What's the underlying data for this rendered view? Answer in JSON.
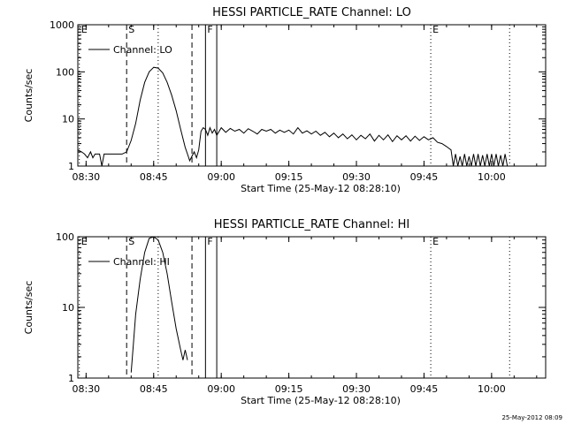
{
  "footer_timestamp": "25-May-2012 08:09",
  "chart_data": [
    {
      "type": "line",
      "title": "HESSI PARTICLE_RATE Channel: LO",
      "xlabel": "Start Time (25-May-12 08:28:10)",
      "ylabel": "Counts/sec",
      "yscale": "log",
      "xlim": [
        "08:28:10",
        "10:12:00"
      ],
      "ylim": [
        1,
        1000
      ],
      "x_ticks": [
        "08:30",
        "08:45",
        "09:00",
        "09:15",
        "09:30",
        "09:45",
        "10:00"
      ],
      "y_ticks": [
        "1",
        "10",
        "100",
        "1000"
      ],
      "legend": {
        "label": "Channel: LO",
        "placement": "top-left"
      },
      "markers": [
        {
          "label": "E",
          "time": "08:28:30",
          "style": "dotted"
        },
        {
          "label": "S",
          "time": "08:39:00",
          "style": "dashed"
        },
        {
          "label": "",
          "time": "08:46:00",
          "style": "dotted"
        },
        {
          "label": "",
          "time": "08:53:30",
          "style": "dashed"
        },
        {
          "label": "F",
          "time": "08:56:30",
          "style": "solid"
        },
        {
          "label": "",
          "time": "08:59:00",
          "style": "solid"
        },
        {
          "label": "E",
          "time": "09:46:30",
          "style": "dotted"
        },
        {
          "label": "",
          "time": "10:04:00",
          "style": "dotted"
        }
      ],
      "series": [
        {
          "name": "Channel: LO",
          "points": [
            [
              "08:28:10",
              2.2
            ],
            [
              "08:29:00",
              2.0
            ],
            [
              "08:29:40",
              1.8
            ],
            [
              "08:30:20",
              1.5
            ],
            [
              "08:31:00",
              2.0
            ],
            [
              "08:31:30",
              1.5
            ],
            [
              "08:32:00",
              1.8
            ],
            [
              "08:33:00",
              1.8
            ],
            [
              "08:33:30",
              1.0
            ],
            [
              "08:34:00",
              1.8
            ],
            [
              "08:36:00",
              1.8
            ],
            [
              "08:38:00",
              1.8
            ],
            [
              "08:39:00",
              2.0
            ],
            [
              "08:40:00",
              3.5
            ],
            [
              "08:41:00",
              8
            ],
            [
              "08:42:00",
              25
            ],
            [
              "08:43:00",
              60
            ],
            [
              "08:44:00",
              100
            ],
            [
              "08:45:00",
              125
            ],
            [
              "08:46:00",
              120
            ],
            [
              "08:47:00",
              95
            ],
            [
              "08:48:00",
              60
            ],
            [
              "08:49:00",
              32
            ],
            [
              "08:50:00",
              15
            ],
            [
              "08:51:00",
              6
            ],
            [
              "08:52:00",
              2.5
            ],
            [
              "08:52:30",
              1.8
            ],
            [
              "08:53:00",
              1.3
            ],
            [
              "08:54:00",
              2.0
            ],
            [
              "08:54:30",
              1.5
            ],
            [
              "08:55:00",
              2.2
            ],
            [
              "08:55:30",
              5.5
            ],
            [
              "08:56:00",
              6.5
            ],
            [
              "08:56:30",
              6.0
            ],
            [
              "08:57:00",
              4.5
            ],
            [
              "08:57:30",
              6.5
            ],
            [
              "08:58:00",
              5.0
            ],
            [
              "08:58:30",
              6.0
            ],
            [
              "08:59:00",
              4.5
            ],
            [
              "09:00:00",
              6.5
            ],
            [
              "09:01:00",
              5.2
            ],
            [
              "09:02:00",
              6.3
            ],
            [
              "09:03:00",
              5.5
            ],
            [
              "09:04:00",
              6.0
            ],
            [
              "09:05:00",
              5.0
            ],
            [
              "09:06:00",
              6.2
            ],
            [
              "09:07:00",
              5.5
            ],
            [
              "09:08:00",
              4.8
            ],
            [
              "09:09:00",
              6.0
            ],
            [
              "09:10:00",
              5.5
            ],
            [
              "09:11:00",
              6.0
            ],
            [
              "09:12:00",
              5.0
            ],
            [
              "09:13:00",
              5.8
            ],
            [
              "09:14:00",
              5.2
            ],
            [
              "09:15:00",
              5.8
            ],
            [
              "09:16:00",
              4.8
            ],
            [
              "09:17:00",
              6.5
            ],
            [
              "09:18:00",
              5.0
            ],
            [
              "09:19:00",
              5.6
            ],
            [
              "09:20:00",
              4.8
            ],
            [
              "09:21:00",
              5.5
            ],
            [
              "09:22:00",
              4.5
            ],
            [
              "09:23:00",
              5.2
            ],
            [
              "09:24:00",
              4.2
            ],
            [
              "09:25:00",
              5.0
            ],
            [
              "09:26:00",
              4.0
            ],
            [
              "09:27:00",
              4.8
            ],
            [
              "09:28:00",
              3.8
            ],
            [
              "09:29:00",
              4.6
            ],
            [
              "09:30:00",
              3.6
            ],
            [
              "09:31:00",
              4.5
            ],
            [
              "09:32:00",
              3.8
            ],
            [
              "09:33:00",
              4.8
            ],
            [
              "09:34:00",
              3.4
            ],
            [
              "09:35:00",
              4.5
            ],
            [
              "09:36:00",
              3.6
            ],
            [
              "09:37:00",
              4.6
            ],
            [
              "09:38:00",
              3.3
            ],
            [
              "09:39:00",
              4.4
            ],
            [
              "09:40:00",
              3.6
            ],
            [
              "09:41:00",
              4.4
            ],
            [
              "09:42:00",
              3.4
            ],
            [
              "09:43:00",
              4.3
            ],
            [
              "09:44:00",
              3.5
            ],
            [
              "09:45:00",
              4.2
            ],
            [
              "09:46:00",
              3.6
            ],
            [
              "09:47:00",
              4.0
            ],
            [
              "09:48:00",
              3.2
            ],
            [
              "09:49:00",
              3.0
            ],
            [
              "09:50:00",
              2.6
            ],
            [
              "09:51:00",
              2.2
            ],
            [
              "09:51:30",
              1.0
            ],
            [
              "09:52:00",
              1.8
            ],
            [
              "09:52:30",
              1.0
            ],
            [
              "09:53:00",
              1.6
            ],
            [
              "09:53:30",
              1.0
            ],
            [
              "09:54:00",
              1.8
            ],
            [
              "09:54:30",
              1.0
            ],
            [
              "09:55:00",
              1.6
            ],
            [
              "09:55:30",
              1.0
            ],
            [
              "09:56:00",
              1.8
            ],
            [
              "09:56:30",
              1.0
            ],
            [
              "09:57:00",
              1.8
            ],
            [
              "09:57:30",
              1.0
            ],
            [
              "09:58:00",
              1.7
            ],
            [
              "09:58:30",
              1.0
            ],
            [
              "09:59:00",
              1.8
            ],
            [
              "09:59:30",
              1.0
            ],
            [
              "10:00:00",
              1.8
            ],
            [
              "10:00:30",
              1.0
            ],
            [
              "10:01:00",
              1.8
            ],
            [
              "10:01:30",
              1.0
            ],
            [
              "10:02:00",
              1.7
            ],
            [
              "10:02:30",
              1.0
            ],
            [
              "10:03:00",
              1.8
            ],
            [
              "10:03:30",
              1.0
            ]
          ]
        }
      ]
    },
    {
      "type": "line",
      "title": "HESSI PARTICLE_RATE Channel: HI",
      "xlabel": "Start Time (25-May-12 08:28:10)",
      "ylabel": "Counts/sec",
      "yscale": "log",
      "xlim": [
        "08:28:10",
        "10:12:00"
      ],
      "ylim": [
        1,
        100
      ],
      "x_ticks": [
        "08:30",
        "08:45",
        "09:00",
        "09:15",
        "09:30",
        "09:45",
        "10:00"
      ],
      "y_ticks": [
        "1",
        "10",
        "100"
      ],
      "legend": {
        "label": "Channel: HI",
        "placement": "top-left"
      },
      "markers": [
        {
          "label": "E",
          "time": "08:28:30",
          "style": "dotted"
        },
        {
          "label": "S",
          "time": "08:39:00",
          "style": "dashed"
        },
        {
          "label": "",
          "time": "08:46:00",
          "style": "dotted"
        },
        {
          "label": "",
          "time": "08:53:30",
          "style": "dashed"
        },
        {
          "label": "F",
          "time": "08:56:30",
          "style": "solid"
        },
        {
          "label": "",
          "time": "08:59:00",
          "style": "solid"
        },
        {
          "label": "E",
          "time": "09:46:30",
          "style": "dotted"
        },
        {
          "label": "",
          "time": "10:04:00",
          "style": "dotted"
        }
      ],
      "series": [
        {
          "name": "Channel: HI",
          "points": [
            [
              "08:40:00",
              1.2
            ],
            [
              "08:40:30",
              3
            ],
            [
              "08:41:00",
              8
            ],
            [
              "08:42:00",
              25
            ],
            [
              "08:43:00",
              60
            ],
            [
              "08:44:00",
              95
            ],
            [
              "08:45:00",
              100
            ],
            [
              "08:46:00",
              90
            ],
            [
              "08:47:00",
              60
            ],
            [
              "08:48:00",
              30
            ],
            [
              "08:49:00",
              12
            ],
            [
              "08:50:00",
              5
            ],
            [
              "08:51:00",
              2.5
            ],
            [
              "08:51:30",
              1.8
            ],
            [
              "08:52:00",
              2.5
            ],
            [
              "08:52:30",
              1.8
            ]
          ]
        }
      ]
    }
  ]
}
